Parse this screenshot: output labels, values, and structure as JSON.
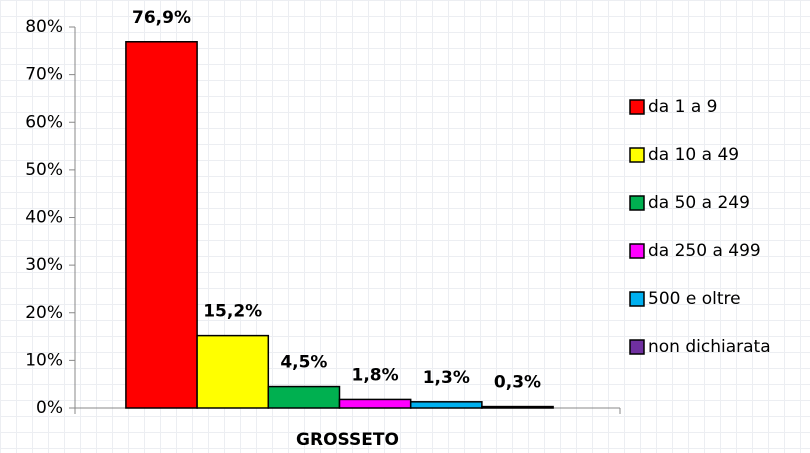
{
  "chart_data": {
    "type": "bar",
    "categories": [
      "GROSSETO"
    ],
    "series": [
      {
        "name": "da 1 a 9",
        "color": "#ff0000",
        "values": [
          76.9
        ],
        "value_labels": [
          "76,9%"
        ]
      },
      {
        "name": "da 10 a 49",
        "color": "#ffff00",
        "values": [
          15.2
        ],
        "value_labels": [
          "15,2%"
        ]
      },
      {
        "name": "da 50 a 249",
        "color": "#00b050",
        "values": [
          4.5
        ],
        "value_labels": [
          "4,5%"
        ]
      },
      {
        "name": "da 250 a 499",
        "color": "#ff00ff",
        "values": [
          1.8
        ],
        "value_labels": [
          "1,8%"
        ]
      },
      {
        "name": "500 e oltre",
        "color": "#00b0f0",
        "values": [
          1.3
        ],
        "value_labels": [
          "1,3%"
        ]
      },
      {
        "name": "non dichiarata",
        "color": "#7030a0",
        "values": [
          0.3
        ],
        "value_labels": [
          "0,3%"
        ]
      }
    ],
    "ylim": [
      0,
      80
    ],
    "yticks": [
      {
        "value": 0,
        "label": "0%"
      },
      {
        "value": 10,
        "label": "10%"
      },
      {
        "value": 20,
        "label": "20%"
      },
      {
        "value": 30,
        "label": "30%"
      },
      {
        "value": 40,
        "label": "40%"
      },
      {
        "value": 50,
        "label": "50%"
      },
      {
        "value": 60,
        "label": "60%"
      },
      {
        "value": 70,
        "label": "70%"
      },
      {
        "value": 80,
        "label": "80%"
      }
    ],
    "legend": "right"
  }
}
